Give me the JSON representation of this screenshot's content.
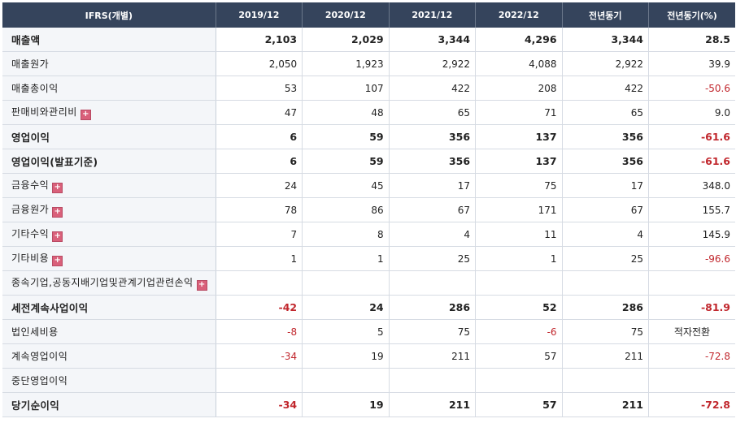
{
  "header": [
    "IFRS(개별)",
    "2019/12",
    "2020/12",
    "2021/12",
    "2022/12",
    "전년동기",
    "전년동기(%)"
  ],
  "rows": [
    {
      "label": "매출액",
      "bold": true,
      "expand": false,
      "values": [
        "2,103",
        "2,029",
        "3,344",
        "4,296",
        "3,344",
        "28.5"
      ]
    },
    {
      "label": "매출원가",
      "bold": false,
      "expand": false,
      "values": [
        "2,050",
        "1,923",
        "2,922",
        "4,088",
        "2,922",
        "39.9"
      ]
    },
    {
      "label": "매출총이익",
      "bold": false,
      "expand": false,
      "values": [
        "53",
        "107",
        "422",
        "208",
        "422",
        "-50.6"
      ]
    },
    {
      "label": "판매비와관리비",
      "bold": false,
      "expand": true,
      "values": [
        "47",
        "48",
        "65",
        "71",
        "65",
        "9.0"
      ]
    },
    {
      "label": "영업이익",
      "bold": true,
      "expand": false,
      "values": [
        "6",
        "59",
        "356",
        "137",
        "356",
        "-61.6"
      ]
    },
    {
      "label": "영업이익(발표기준)",
      "bold": true,
      "expand": false,
      "values": [
        "6",
        "59",
        "356",
        "137",
        "356",
        "-61.6"
      ]
    },
    {
      "label": "금융수익",
      "bold": false,
      "expand": true,
      "values": [
        "24",
        "45",
        "17",
        "75",
        "17",
        "348.0"
      ]
    },
    {
      "label": "금융원가",
      "bold": false,
      "expand": true,
      "values": [
        "78",
        "86",
        "67",
        "171",
        "67",
        "155.7"
      ]
    },
    {
      "label": "기타수익",
      "bold": false,
      "expand": true,
      "values": [
        "7",
        "8",
        "4",
        "11",
        "4",
        "145.9"
      ]
    },
    {
      "label": "기타비용",
      "bold": false,
      "expand": true,
      "values": [
        "1",
        "1",
        "25",
        "1",
        "25",
        "-96.6"
      ]
    },
    {
      "label": "종속기업,공동지배기업및관계기업관련손익",
      "bold": false,
      "expand": true,
      "values": [
        "",
        "",
        "",
        "",
        "",
        ""
      ]
    },
    {
      "label": "세전계속사업이익",
      "bold": true,
      "expand": false,
      "values": [
        "-42",
        "24",
        "286",
        "52",
        "286",
        "-81.9"
      ]
    },
    {
      "label": "법인세비용",
      "bold": false,
      "expand": false,
      "values": [
        "-8",
        "5",
        "75",
        "-6",
        "75",
        "적자전환"
      ]
    },
    {
      "label": "계속영업이익",
      "bold": false,
      "expand": false,
      "values": [
        "-34",
        "19",
        "211",
        "57",
        "211",
        "-72.8"
      ]
    },
    {
      "label": "중단영업이익",
      "bold": false,
      "expand": false,
      "values": [
        "",
        "",
        "",
        "",
        "",
        ""
      ]
    },
    {
      "label": "당기순이익",
      "bold": true,
      "expand": false,
      "values": [
        "-34",
        "19",
        "211",
        "57",
        "211",
        "-72.8"
      ]
    }
  ],
  "expand_glyph": "+",
  "colors": {
    "header_bg": "#35445c",
    "negative": "#c1272d",
    "expand_icon": "#d9607a"
  }
}
